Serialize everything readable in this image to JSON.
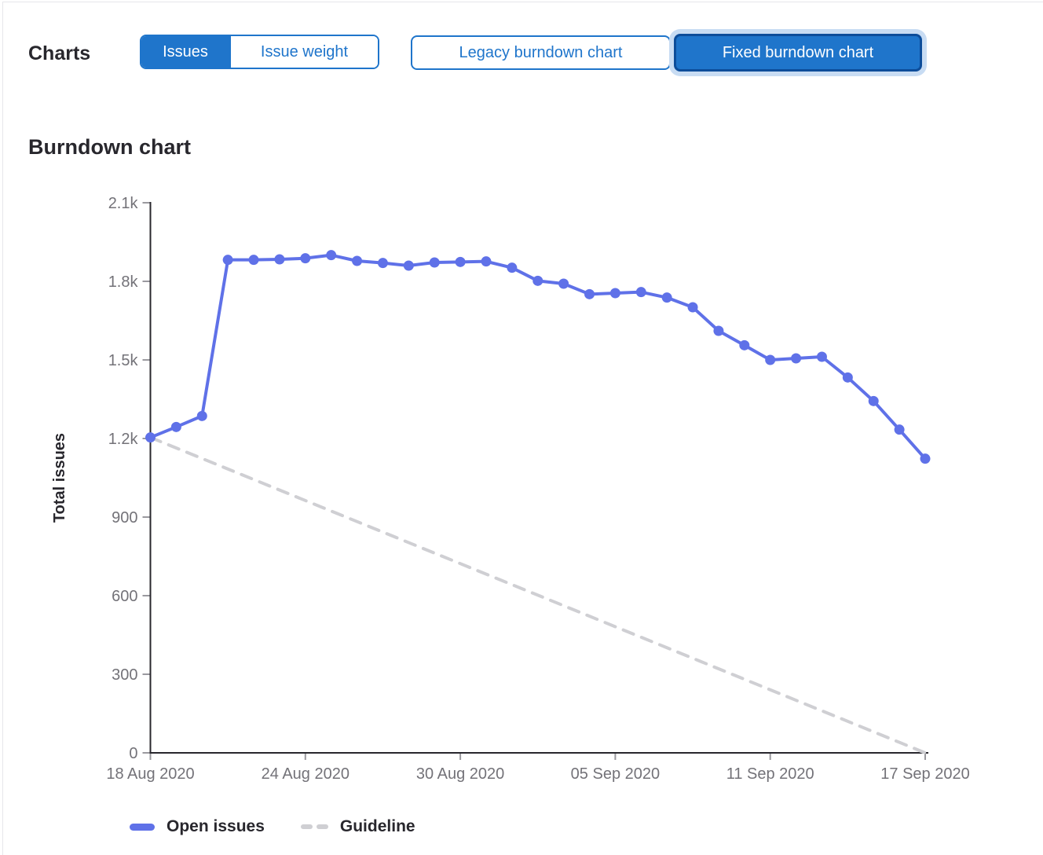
{
  "header": {
    "charts_label": "Charts",
    "metric_toggle": {
      "options": [
        {
          "label": "Issues",
          "selected": true
        },
        {
          "label": "Issue weight",
          "selected": false
        }
      ]
    },
    "chart_type_toggle": {
      "options": [
        {
          "label": "Legacy burndown chart",
          "selected": false
        },
        {
          "label": "Fixed burndown chart",
          "selected": true
        }
      ]
    }
  },
  "section": {
    "title": "Burndown chart"
  },
  "colors": {
    "accent_blue": "#1f75cb",
    "selected_border_blue": "#0d4d9a",
    "focus_ring": "#c8dcf3",
    "open_issues_line": "#5f71e8",
    "guideline_gray": "#cfcfd3",
    "axis_line": "#28272d",
    "tick_mark": "#9a999e",
    "tick_text": "#737278",
    "heading_text": "#28272d"
  },
  "chart_data": {
    "type": "line",
    "title": "Burndown chart",
    "xlabel": "",
    "ylabel": "Total issues",
    "ylim": [
      0,
      2100
    ],
    "grid": false,
    "legend_position": "bottom",
    "y_ticks": [
      {
        "value": 2100,
        "label": "2.1k"
      },
      {
        "value": 1800,
        "label": "1.8k"
      },
      {
        "value": 1500,
        "label": "1.5k"
      },
      {
        "value": 1200,
        "label": "1.2k"
      },
      {
        "value": 900,
        "label": "900"
      },
      {
        "value": 600,
        "label": "600"
      },
      {
        "value": 300,
        "label": "300"
      },
      {
        "value": 0,
        "label": "0"
      }
    ],
    "x_ticks": [
      {
        "day": 0,
        "label": "18 Aug 2020"
      },
      {
        "day": 6,
        "label": "24 Aug 2020"
      },
      {
        "day": 12,
        "label": "30 Aug 2020"
      },
      {
        "day": 18,
        "label": "05 Sep 2020"
      },
      {
        "day": 24,
        "label": "11 Sep 2020"
      },
      {
        "day": 30,
        "label": "17 Sep 2020"
      }
    ],
    "x_dates": [
      "18 Aug 2020",
      "19 Aug 2020",
      "20 Aug 2020",
      "21 Aug 2020",
      "22 Aug 2020",
      "23 Aug 2020",
      "24 Aug 2020",
      "25 Aug 2020",
      "26 Aug 2020",
      "27 Aug 2020",
      "28 Aug 2020",
      "29 Aug 2020",
      "30 Aug 2020",
      "31 Aug 2020",
      "01 Sep 2020",
      "02 Sep 2020",
      "03 Sep 2020",
      "04 Sep 2020",
      "05 Sep 2020",
      "06 Sep 2020",
      "07 Sep 2020",
      "08 Sep 2020",
      "09 Sep 2020",
      "10 Sep 2020",
      "11 Sep 2020",
      "12 Sep 2020",
      "13 Sep 2020",
      "14 Sep 2020",
      "15 Sep 2020",
      "16 Sep 2020",
      "17 Sep 2020"
    ],
    "series": [
      {
        "name": "Open issues",
        "style": "solid",
        "color": "#5f71e8",
        "values": [
          1204,
          1244,
          1286,
          1882,
          1882,
          1884,
          1888,
          1900,
          1878,
          1870,
          1860,
          1872,
          1874,
          1876,
          1852,
          1802,
          1791,
          1751,
          1755,
          1759,
          1738,
          1701,
          1611,
          1556,
          1500,
          1506,
          1512,
          1433,
          1343,
          1234,
          1123
        ]
      },
      {
        "name": "Guideline",
        "style": "dashed",
        "color": "#cfcfd3",
        "points": [
          {
            "x": "18 Aug 2020",
            "y": 1204
          },
          {
            "x": "17 Sep 2020",
            "y": 0
          }
        ]
      }
    ]
  }
}
